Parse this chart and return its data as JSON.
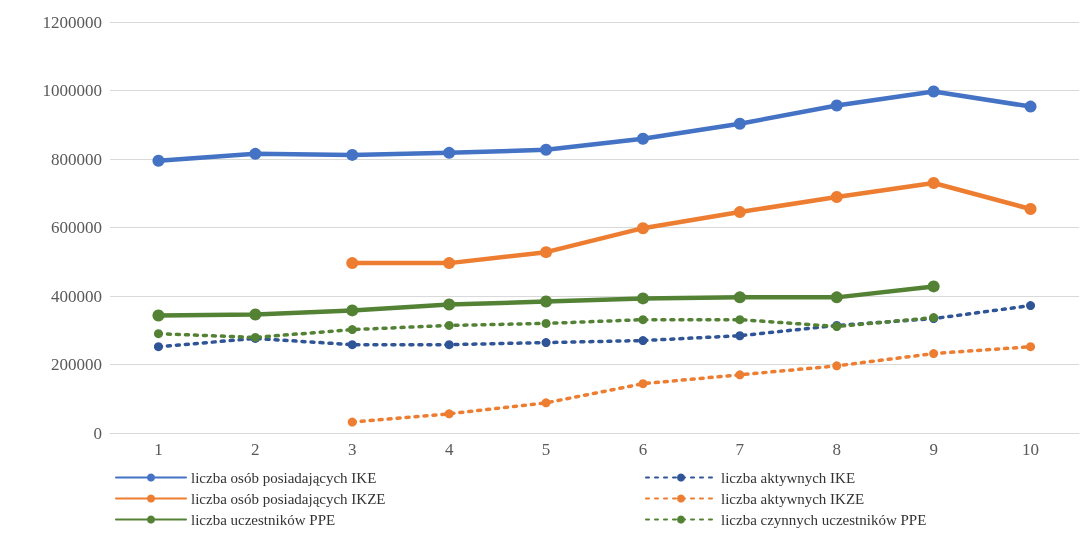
{
  "chart_data": {
    "type": "line",
    "categories": [
      "1",
      "2",
      "3",
      "4",
      "5",
      "6",
      "7",
      "8",
      "9",
      "10"
    ],
    "series": [
      {
        "name": "liczba osób posiadających IKE",
        "color": "#4472c4",
        "line_style": "solid",
        "values": [
          795000,
          815000,
          812000,
          818000,
          827000,
          859000,
          903000,
          956000,
          997000,
          953000
        ]
      },
      {
        "name": "liczba aktywnych IKE",
        "color": "#2f5597",
        "line_style": "dotted",
        "values": [
          252000,
          276000,
          258000,
          258000,
          264000,
          270000,
          284000,
          314000,
          334000,
          372000
        ]
      },
      {
        "name": "liczba osób posiadających IKZE",
        "color": "#ed7d31",
        "line_style": "solid",
        "values": [
          null,
          null,
          496000,
          496000,
          528000,
          598000,
          645000,
          689000,
          730000,
          654000
        ]
      },
      {
        "name": "liczba aktywnych IKZE",
        "color": "#ed7d31",
        "line_style": "dotted",
        "values": [
          null,
          null,
          32000,
          56000,
          88000,
          144000,
          170000,
          196000,
          232000,
          252000
        ]
      },
      {
        "name": "liczba uczestników PPE",
        "color": "#548235",
        "line_style": "solid",
        "values": [
          343000,
          346000,
          358000,
          375000,
          384000,
          393000,
          396000,
          396000,
          428000,
          null
        ]
      },
      {
        "name": "liczba czynnych uczestników PPE",
        "color": "#548235",
        "line_style": "dotted",
        "values": [
          290000,
          279000,
          302000,
          314000,
          320000,
          331000,
          331000,
          311000,
          337000,
          null
        ]
      }
    ],
    "ylim": [
      0,
      1200000
    ],
    "yticks": [
      0,
      200000,
      400000,
      600000,
      800000,
      1000000,
      1200000
    ],
    "grid": "y",
    "legend": "bottom",
    "marker": "circle"
  }
}
